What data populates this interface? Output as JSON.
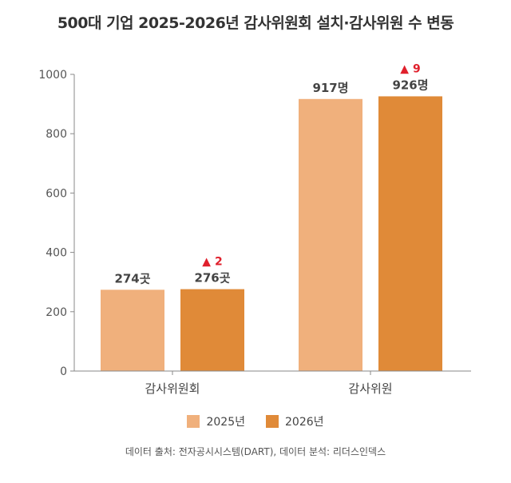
{
  "title": "500대 기업 2025-2026년 감사위원회 설치·감사위원 수 변동",
  "source": "데이터 출처: 전자공시시스템(DART), 데이터 분석: 리더스인덱스",
  "colors": {
    "s2025": "#F0B07C",
    "s2026": "#E08A38",
    "change": "#E0202C",
    "axis": "#888888"
  },
  "chart_data": {
    "type": "bar",
    "categories": [
      "감사위원회",
      "감사위원"
    ],
    "series": [
      {
        "name": "2025년",
        "values": [
          274,
          917
        ],
        "labels": [
          "274곳",
          "917명"
        ]
      },
      {
        "name": "2026년",
        "values": [
          276,
          926
        ],
        "labels": [
          "276곳",
          "926명"
        ]
      }
    ],
    "changes": [
      "▲ 2",
      "▲ 9"
    ],
    "ylim": [
      0,
      1000
    ],
    "yticks": [
      0,
      200,
      400,
      600,
      800,
      1000
    ],
    "legend_position": "bottom",
    "grid": false
  }
}
